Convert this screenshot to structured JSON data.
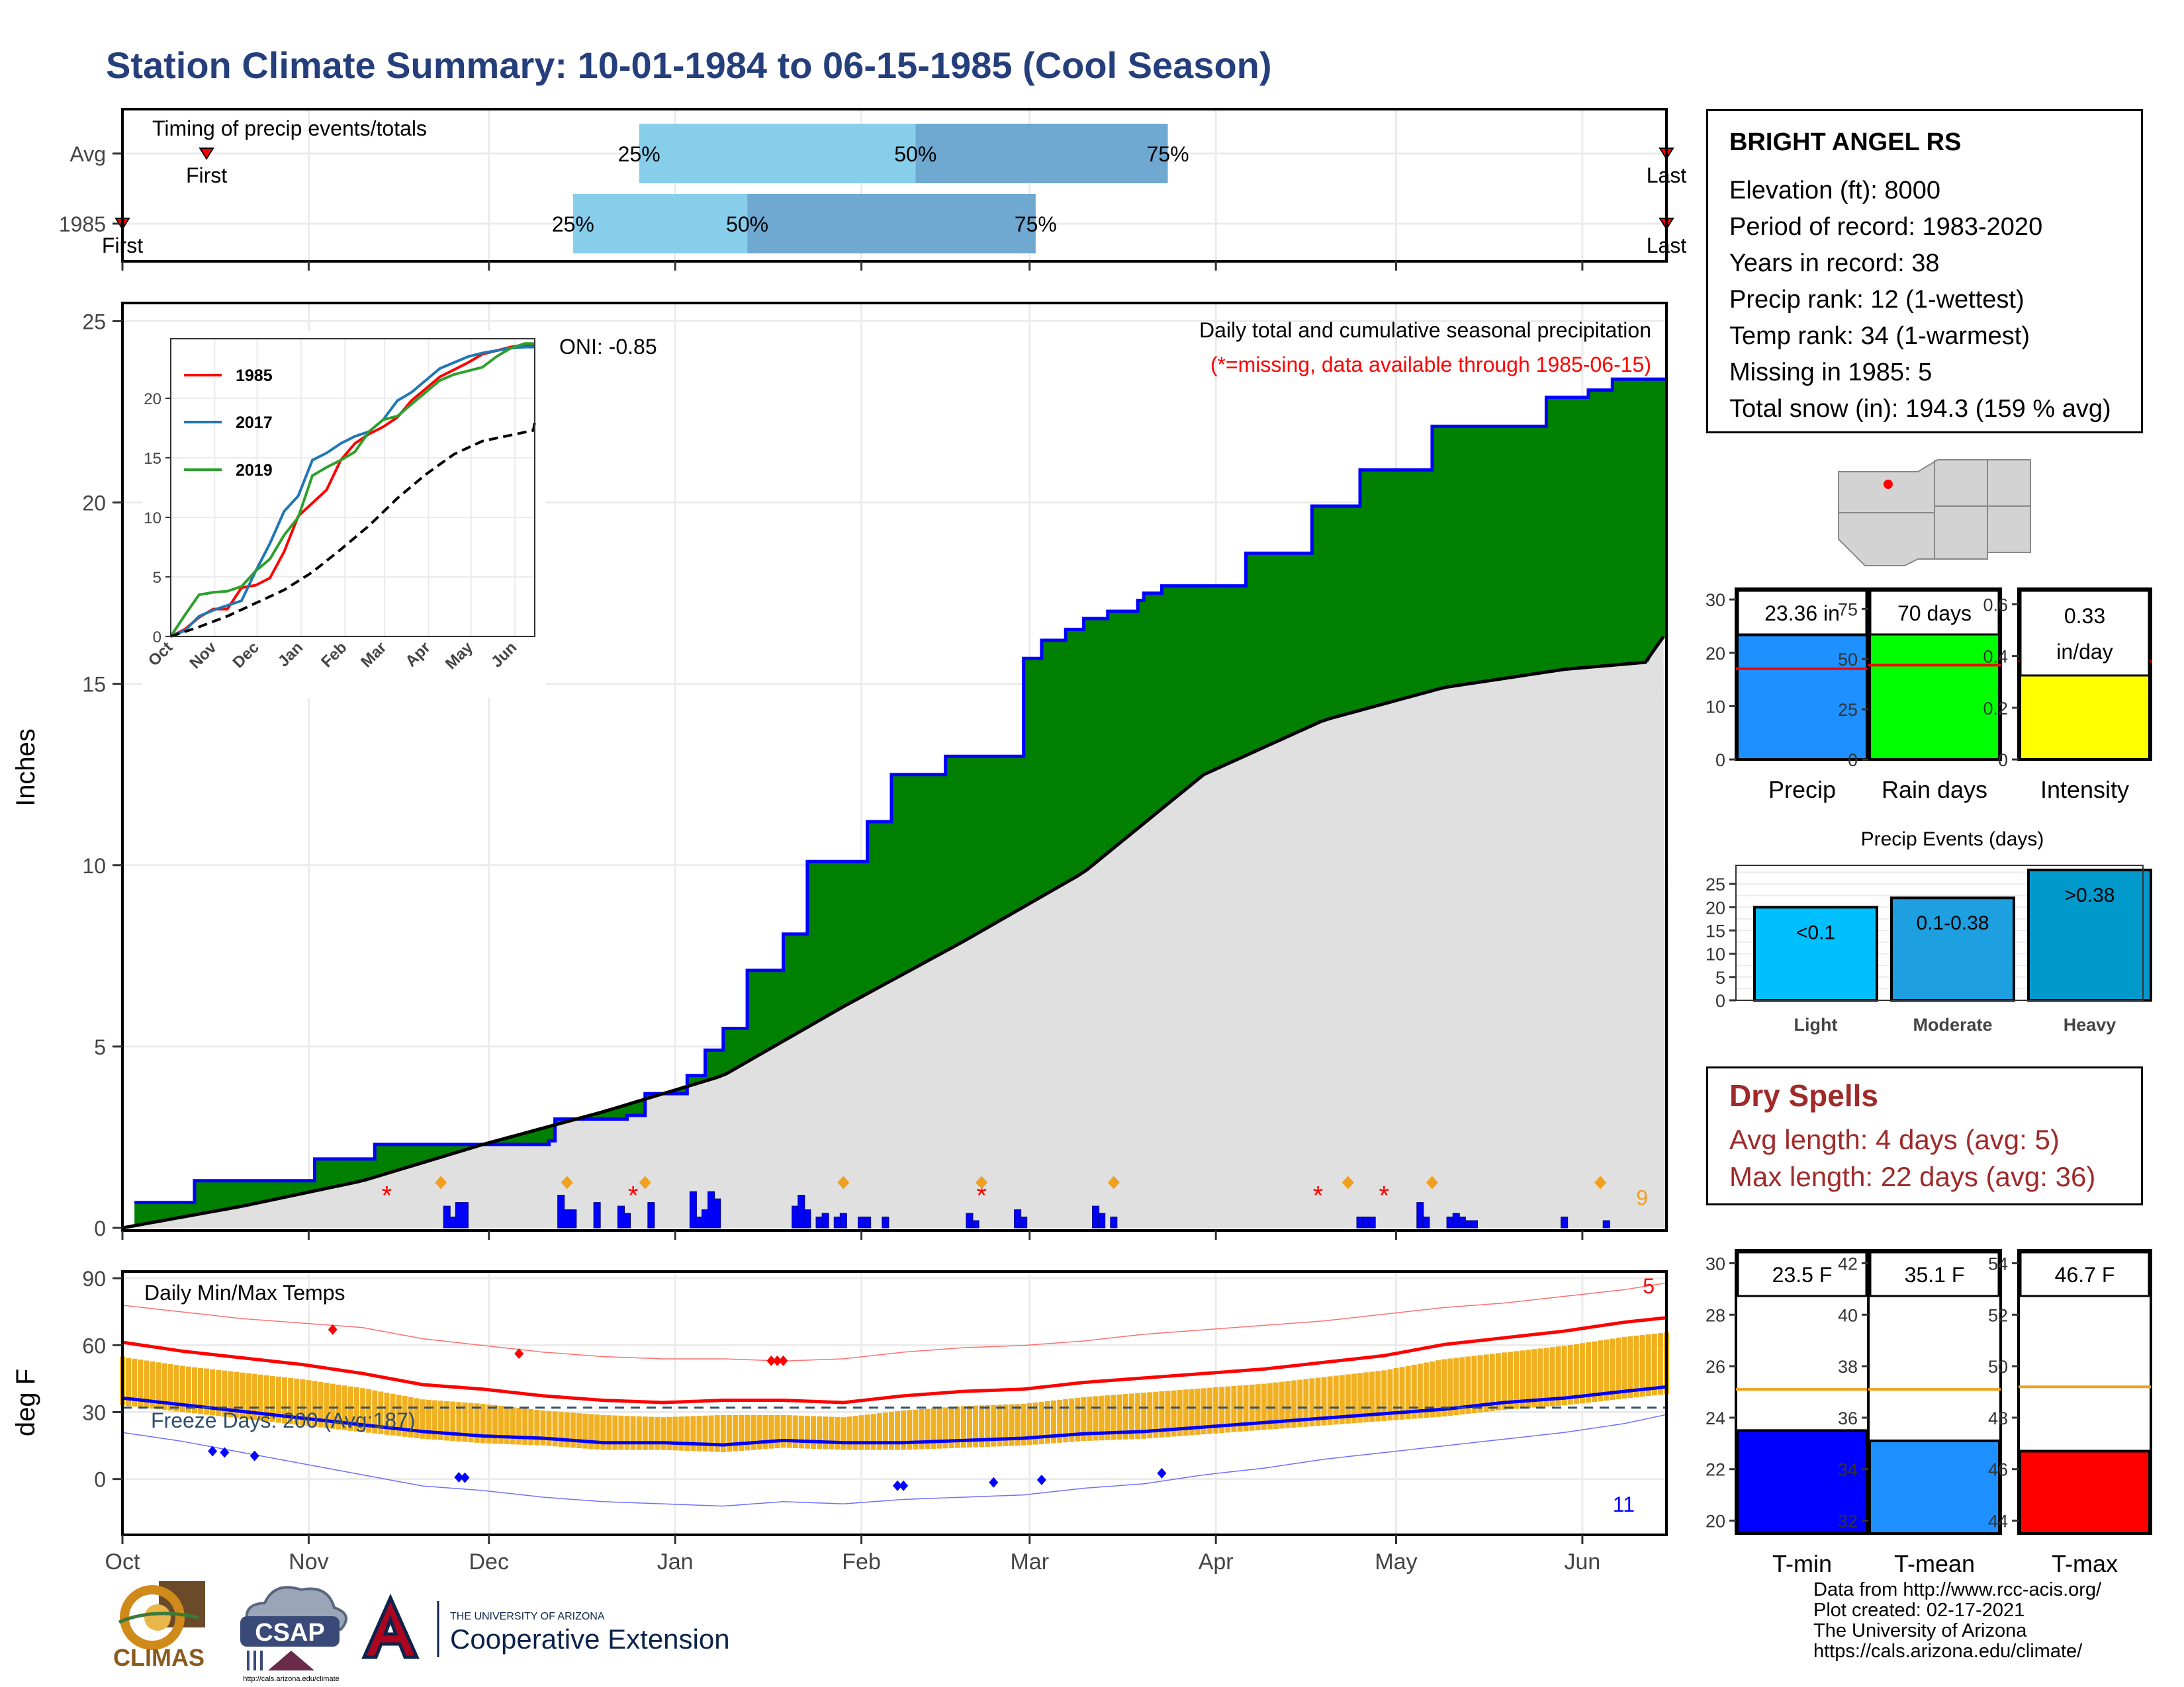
{
  "title": "Station Climate Summary: 10-01-1984 to 06-15-1985 (Cool Season)",
  "month_ticks": [
    "Oct",
    "Nov",
    "Dec",
    "Jan",
    "Feb",
    "Mar",
    "Apr",
    "May",
    "Jun"
  ],
  "colors": {
    "title": "#253f7d",
    "green": "#008000",
    "blue": "#0000ff",
    "orange": "#f0b020",
    "gray": "#e0e0e0",
    "red": "#ff0000",
    "light_blue": "#87ceeb",
    "mid_blue": "#6fa8d0"
  },
  "timing": {
    "label": "Timing of precip events/totals",
    "rows": [
      {
        "name": "Avg",
        "p25_day": 86,
        "p50_day": 132,
        "p75_day": 174,
        "first_day": 14,
        "last_day": 257,
        "p25": "25%",
        "p50": "50%",
        "p75": "75%",
        "first": "First",
        "last": "Last"
      },
      {
        "name": "1985",
        "p25_day": 75,
        "p50_day": 104,
        "p75_day": 152,
        "first_day": 0,
        "last_day": 257,
        "p25": "25%",
        "p50": "50%",
        "p75": "75%",
        "first": "First",
        "last": "Last"
      }
    ]
  },
  "chart_data": [
    {
      "type": "area",
      "title": "Daily total and cumulative seasonal precipitation",
      "subtitle": "(*=missing, data available through 1985-06-15)",
      "annotation": "ONI: -0.85",
      "corner_count": "9",
      "ylabel": "Inches",
      "ylim": [
        0,
        25.5
      ],
      "yticks": [
        0,
        5,
        10,
        15,
        20,
        25
      ],
      "x_domain_days": [
        0,
        257
      ],
      "series": [
        {
          "name": "1985 cumulative",
          "x": [
            2,
            12,
            12,
            32,
            32,
            42,
            42,
            56,
            56,
            71,
            71,
            72,
            72,
            84,
            84,
            87,
            87,
            94,
            94,
            97,
            97,
            100,
            100,
            104,
            104,
            110,
            110,
            114,
            114,
            124,
            124,
            128,
            128,
            137,
            137,
            150,
            150,
            153,
            153,
            157,
            157,
            160,
            160,
            164,
            164,
            169,
            169,
            170,
            170,
            173,
            173,
            187,
            187,
            198,
            198,
            206,
            206,
            218,
            218,
            237,
            237,
            244,
            244,
            248,
            248,
            257
          ],
          "y": [
            0.7,
            0.7,
            1.3,
            1.3,
            1.9,
            1.9,
            2.3,
            2.3,
            2.3,
            2.3,
            2.4,
            2.4,
            3.0,
            3.0,
            3.1,
            3.1,
            3.7,
            3.7,
            4.2,
            4.2,
            4.9,
            4.9,
            5.5,
            5.5,
            7.1,
            7.1,
            8.1,
            8.1,
            10.1,
            10.1,
            11.2,
            11.2,
            12.5,
            12.5,
            13,
            13,
            15.7,
            15.7,
            16.2,
            16.2,
            16.5,
            16.5,
            16.8,
            16.8,
            17.0,
            17.0,
            17.3,
            17.3,
            17.5,
            17.5,
            17.7,
            17.7,
            18.6,
            18.6,
            19.9,
            19.9,
            20.9,
            20.9,
            22.1,
            22.1,
            22.9,
            22.9,
            23.1,
            23.1,
            23.4,
            23.4
          ]
        },
        {
          "name": "Average cumulative",
          "x": [
            0,
            20,
            40,
            60,
            80,
            100,
            120,
            140,
            160,
            180,
            200,
            220,
            240,
            254,
            256,
            257
          ],
          "y": [
            0,
            0.6,
            1.3,
            2.3,
            3.2,
            4.2,
            6.1,
            7.9,
            9.8,
            12.5,
            14.0,
            14.9,
            15.4,
            15.6,
            16.3,
            16.3
          ]
        }
      ],
      "daily_bar_days": [
        54,
        55,
        56,
        57,
        73,
        74,
        75,
        79,
        83,
        84,
        88,
        95,
        96,
        97,
        98,
        99,
        112,
        113,
        114,
        116,
        117,
        119,
        120,
        123,
        124,
        127,
        141,
        142,
        149,
        150,
        162,
        163,
        165,
        206,
        207,
        208,
        216,
        217,
        221,
        221,
        222,
        223,
        224,
        225,
        240,
        247
      ],
      "daily_bar_vals": [
        0.6,
        0.3,
        0.7,
        0.7,
        0.9,
        0.5,
        0.5,
        0.7,
        0.6,
        0.4,
        0.7,
        1.0,
        0.3,
        0.5,
        1.0,
        0.8,
        0.6,
        0.9,
        0.5,
        0.3,
        0.4,
        0.3,
        0.4,
        0.3,
        0.3,
        0.3,
        0.4,
        0.2,
        0.5,
        0.3,
        0.6,
        0.4,
        0.3,
        0.3,
        0.3,
        0.3,
        0.7,
        0.3,
        0.3,
        0.3,
        0.4,
        0.3,
        0.2,
        0.2,
        0.3,
        0.2
      ],
      "missing_days": [
        44,
        85,
        143,
        199,
        210
      ],
      "event_days": [
        53,
        74,
        87,
        120,
        143,
        165,
        204,
        218,
        246
      ]
    },
    {
      "type": "line",
      "title": "Daily Min/Max Temps",
      "ylabel": "deg F",
      "ylim": [
        -25,
        93
      ],
      "yticks": [
        0,
        30,
        60,
        90
      ],
      "freeze_line": 32,
      "annotation": "Freeze Days: 200 (Avg:187)",
      "corner_top": "5",
      "corner_bottom": "11",
      "series": [
        {
          "name": "Avg max",
          "x": [
            0,
            10,
            20,
            30,
            40,
            50,
            60,
            70,
            80,
            90,
            100,
            110,
            120,
            130,
            140,
            150,
            160,
            170,
            180,
            190,
            200,
            210,
            220,
            230,
            240,
            250,
            257
          ],
          "y": [
            62,
            58,
            55,
            52,
            48,
            43,
            41,
            38,
            36,
            35,
            36,
            36,
            35,
            38,
            40,
            41,
            44,
            46,
            48,
            50,
            53,
            56,
            61,
            64,
            67,
            71,
            73
          ]
        },
        {
          "name": "Avg min",
          "x": [
            0,
            10,
            20,
            30,
            40,
            50,
            60,
            70,
            80,
            90,
            100,
            110,
            120,
            130,
            140,
            150,
            160,
            170,
            180,
            190,
            200,
            210,
            220,
            230,
            240,
            250,
            257
          ],
          "y": [
            37,
            34,
            31,
            28,
            25,
            22,
            20,
            19,
            17,
            17,
            16,
            18,
            17,
            17,
            18,
            19,
            21,
            22,
            24,
            26,
            28,
            30,
            32,
            35,
            37,
            40,
            42
          ]
        },
        {
          "name": "Record max",
          "x": [
            0,
            10,
            20,
            30,
            40,
            50,
            60,
            70,
            80,
            90,
            100,
            110,
            120,
            130,
            140,
            150,
            160,
            170,
            180,
            190,
            200,
            210,
            220,
            230,
            240,
            250,
            257
          ],
          "y": [
            79,
            76,
            73,
            71,
            69,
            64,
            61,
            58,
            56,
            55,
            55,
            54,
            55,
            58,
            60,
            61,
            63,
            66,
            68,
            70,
            72,
            75,
            78,
            80,
            83,
            86,
            89
          ]
        },
        {
          "name": "Record min",
          "x": [
            0,
            10,
            20,
            30,
            40,
            50,
            60,
            70,
            80,
            90,
            100,
            110,
            120,
            130,
            140,
            150,
            160,
            170,
            180,
            190,
            200,
            210,
            220,
            230,
            240,
            250,
            257
          ],
          "y": [
            22,
            18,
            13,
            8,
            3,
            -2,
            -4,
            -7,
            -9,
            -10,
            -11,
            -9,
            -10,
            -8,
            -7,
            -6,
            -3,
            -1,
            3,
            6,
            10,
            13,
            16,
            19,
            22,
            26,
            30
          ]
        }
      ],
      "record_high_days": [
        35,
        66,
        108,
        109,
        110
      ],
      "record_low_days": [
        15,
        17,
        22,
        56,
        57,
        129,
        130,
        145,
        153,
        173
      ],
      "daily_low_seed": 0.37
    },
    {
      "type": "line",
      "title": "",
      "series": [
        {
          "name": "1985",
          "x": [
            0,
            10,
            20,
            30,
            40,
            50,
            60,
            70,
            80,
            90,
            100,
            110,
            120,
            130,
            140,
            150,
            160,
            170,
            180,
            190,
            200,
            210,
            220,
            230,
            240,
            250,
            257
          ],
          "y": [
            0,
            0.6,
            1.6,
            2.3,
            2.3,
            4.1,
            4.3,
            4.9,
            7.1,
            10.1,
            11.2,
            12.3,
            14.8,
            16.2,
            17.0,
            17.6,
            18.4,
            19.8,
            20.8,
            21.8,
            22.4,
            23.0,
            23.7,
            24.0,
            24.3,
            24.5,
            24.5
          ]
        },
        {
          "name": "2017",
          "x": [
            0,
            10,
            20,
            30,
            40,
            50,
            60,
            70,
            80,
            90,
            100,
            110,
            120,
            130,
            140,
            150,
            160,
            170,
            180,
            190,
            200,
            210,
            220,
            230,
            240,
            250,
            257
          ],
          "y": [
            0,
            0.5,
            1.7,
            2.2,
            2.6,
            3.0,
            5.5,
            7.8,
            10.5,
            11.8,
            14.8,
            15.4,
            16.2,
            16.8,
            17.2,
            18.2,
            19.8,
            20.5,
            21.5,
            22.5,
            23.0,
            23.5,
            23.8,
            24.0,
            24.2,
            24.3,
            24.3
          ]
        },
        {
          "name": "2019",
          "x": [
            0,
            10,
            20,
            30,
            40,
            50,
            60,
            70,
            80,
            90,
            100,
            110,
            120,
            130,
            140,
            150,
            160,
            170,
            180,
            190,
            200,
            210,
            220,
            230,
            240,
            250,
            257
          ],
          "y": [
            0,
            1.8,
            3.5,
            3.7,
            3.8,
            4.2,
            5.5,
            6.5,
            8.5,
            10.0,
            13.5,
            14.2,
            14.8,
            15.5,
            17.2,
            18.2,
            18.5,
            19.5,
            20.5,
            21.5,
            22.0,
            22.3,
            22.6,
            23.5,
            24.2,
            24.6,
            24.6
          ]
        },
        {
          "name": "Avg",
          "x": [
            0,
            20,
            40,
            60,
            80,
            100,
            120,
            140,
            160,
            180,
            200,
            220,
            240,
            256,
            257
          ],
          "y": [
            0,
            0.8,
            1.7,
            2.8,
            3.9,
            5.4,
            7.3,
            9.3,
            11.6,
            13.6,
            15.3,
            16.4,
            16.9,
            17.3,
            18.0
          ]
        }
      ],
      "ylim": [
        0,
        25
      ],
      "yticks": [
        0,
        5,
        10,
        15,
        20
      ],
      "month_ticks": [
        "Oct",
        "Nov",
        "Dec",
        "Jan",
        "Feb",
        "Mar",
        "Apr",
        "May",
        "Jun"
      ]
    },
    {
      "type": "bar",
      "categories": [
        "Precip",
        "Rain days",
        "Intensity"
      ],
      "values": [
        23.36,
        70,
        0.33
      ],
      "averages": [
        17.0,
        47,
        0.38
      ],
      "labels": [
        "23.36 in",
        "70 days",
        "0.33 in/day"
      ],
      "ylims": [
        [
          0,
          32
        ],
        [
          0,
          85
        ],
        [
          0,
          0.66
        ]
      ],
      "yticks": [
        [
          0,
          10,
          20,
          30
        ],
        [
          0,
          25,
          50,
          75
        ],
        [
          0.0,
          0.2,
          0.4,
          0.6
        ]
      ],
      "colors": [
        "#1e90ff",
        "#00ff00",
        "#ffff00"
      ]
    },
    {
      "type": "bar",
      "title": "Precip Events (days)",
      "categories": [
        "Light",
        "Moderate",
        "Heavy"
      ],
      "values": [
        20,
        22,
        28
      ],
      "labels": [
        "<0.1",
        "0.1-0.38",
        ">0.38"
      ],
      "ylim": [
        0,
        29
      ],
      "yticks": [
        0,
        5,
        10,
        15,
        20,
        25
      ],
      "colors": [
        "#00bfff",
        "#1e9fe0",
        "#0099cc"
      ]
    },
    {
      "type": "bar",
      "categories": [
        "T-min",
        "T-mean",
        "T-max"
      ],
      "values": [
        23.5,
        35.1,
        46.7
      ],
      "averages": [
        25.1,
        37.1,
        49.2
      ],
      "labels": [
        "23.5 F",
        "35.1 F",
        "46.7 F"
      ],
      "ylims": [
        [
          19.5,
          30.5
        ],
        [
          31.5,
          42.5
        ],
        [
          43.5,
          54.5
        ]
      ],
      "yticks": [
        [
          20,
          22,
          24,
          26,
          28,
          30
        ],
        [
          32,
          34,
          36,
          38,
          40,
          42
        ],
        [
          44,
          46,
          48,
          50,
          52,
          54
        ]
      ],
      "colors": [
        "#0000ff",
        "#1e90ff",
        "#ff0000"
      ]
    }
  ],
  "station": {
    "name": "BRIGHT ANGEL RS",
    "lines": [
      "Elevation (ft): 8000",
      "Period of record: 1983-2020",
      "Years in record: 38",
      "Precip rank: 12 (1-wettest)",
      "Temp rank: 34 (1-warmest)",
      "Missing in 1985: 5",
      "Total snow (in): 194.3 (159 % avg)"
    ]
  },
  "dry_spells": {
    "title": "Dry Spells",
    "avg": "Avg length: 4 days (avg: 5)",
    "max": "Max length: 22 days (avg: 36)"
  },
  "credits": [
    "Data from http://www.rcc-acis.org/",
    "Plot created: 02-17-2021",
    "The University of Arizona",
    "https://cals.arizona.edu/climate/"
  ],
  "logos": {
    "climas": "CLIMAS",
    "csap": "CSAP",
    "csap_url": "http://cals.arizona.edu/climate",
    "ua_small": "THE UNIVERSITY OF ARIZONA",
    "ua_big": "Cooperative Extension"
  }
}
